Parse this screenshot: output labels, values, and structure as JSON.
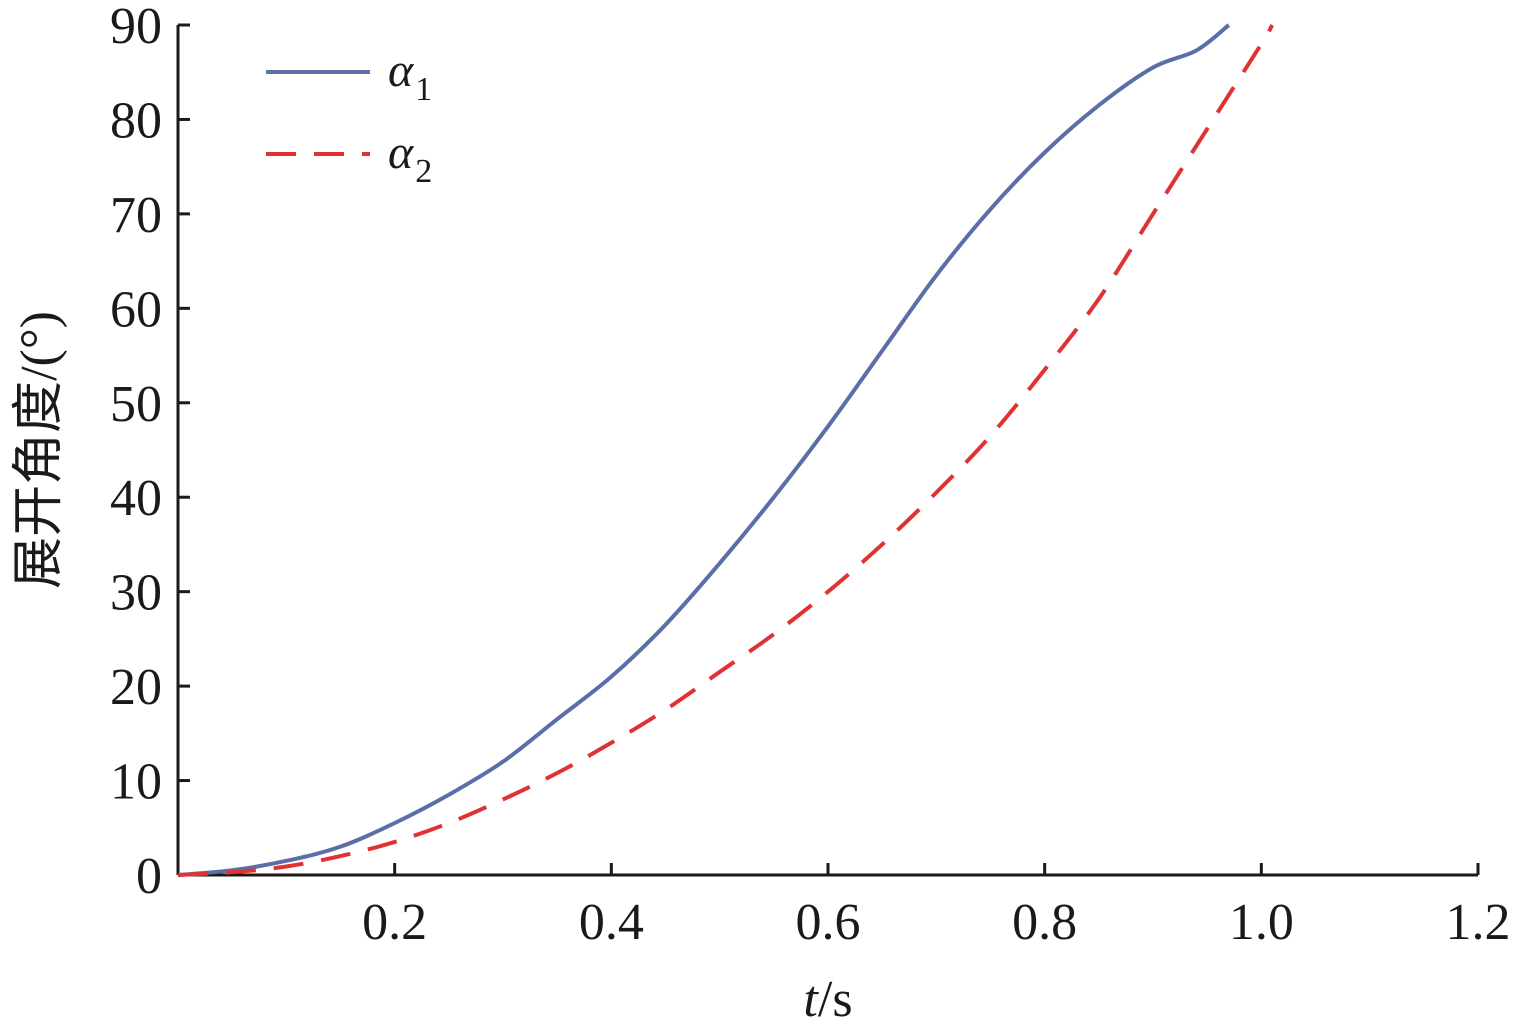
{
  "chart_data": {
    "type": "line",
    "xlabel": "t/s",
    "xlabel_parts": {
      "var": "t",
      "unit": "/s"
    },
    "ylabel": "展开角度/(°)",
    "xlim": [
      0,
      1.2
    ],
    "ylim": [
      0,
      90
    ],
    "x_ticks": [
      0.2,
      0.4,
      0.6,
      0.8,
      1.0,
      1.2
    ],
    "x_tick_labels": [
      "0.2",
      "0.4",
      "0.6",
      "0.8",
      "1.0",
      "1.2"
    ],
    "y_ticks": [
      0,
      10,
      20,
      30,
      40,
      50,
      60,
      70,
      80,
      90
    ],
    "y_tick_labels": [
      "0",
      "10",
      "20",
      "30",
      "40",
      "50",
      "60",
      "70",
      "80",
      "90"
    ],
    "grid": false,
    "legend_position": "top-left",
    "series": [
      {
        "name": "α1",
        "symbol": "α",
        "subscript": "1",
        "color": "#5b6ea8",
        "style": "solid",
        "x": [
          0,
          0.05,
          0.1,
          0.15,
          0.2,
          0.25,
          0.3,
          0.35,
          0.4,
          0.45,
          0.5,
          0.55,
          0.6,
          0.65,
          0.7,
          0.75,
          0.8,
          0.85,
          0.9,
          0.94,
          0.97
        ],
        "y": [
          0,
          0.5,
          1.5,
          3,
          5.5,
          8.5,
          12,
          16.5,
          21,
          26.5,
          33,
          40,
          47.5,
          55.5,
          63.5,
          70.5,
          76.5,
          81.5,
          85.5,
          87.3,
          90
        ]
      },
      {
        "name": "α2",
        "symbol": "α",
        "subscript": "2",
        "color": "#e03232",
        "style": "dashed",
        "x": [
          0,
          0.05,
          0.1,
          0.15,
          0.2,
          0.25,
          0.3,
          0.35,
          0.4,
          0.45,
          0.5,
          0.55,
          0.6,
          0.65,
          0.7,
          0.75,
          0.8,
          0.85,
          0.9,
          0.95,
          1.0,
          1.01
        ],
        "y": [
          0,
          0.3,
          0.9,
          2,
          3.5,
          5.5,
          8,
          10.8,
          14,
          17.5,
          21.5,
          25.5,
          30,
          35,
          40.5,
          46.5,
          53.5,
          61,
          70,
          79,
          88,
          90
        ]
      }
    ]
  }
}
